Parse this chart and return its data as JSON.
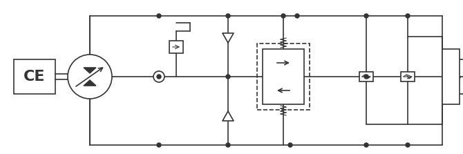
{
  "bg_color": "#ffffff",
  "line_color": "#333333",
  "line_width": 1.2,
  "fig_width": 6.7,
  "fig_height": 2.23,
  "dpi": 100
}
